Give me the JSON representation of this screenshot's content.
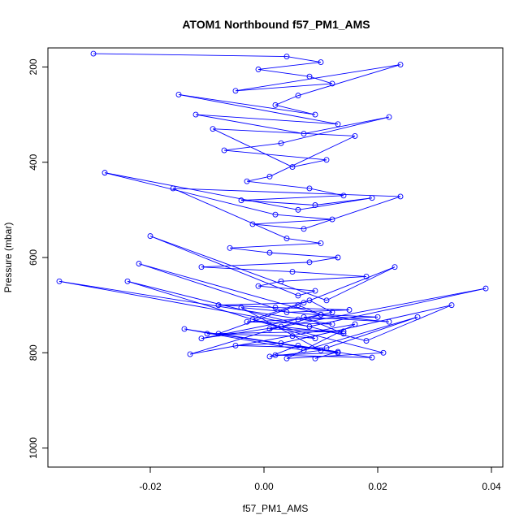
{
  "chart_data": {
    "type": "line",
    "title": "ATOM1 Northbound f57_PM1_AMS",
    "xlabel": "f57_PM1_AMS",
    "ylabel": "Pressure (mbar)",
    "xlim": [
      -0.038,
      0.042
    ],
    "ylim": [
      1040,
      160
    ],
    "y_reversed": true,
    "x_ticks": [
      -0.02,
      0.0,
      0.02,
      0.04
    ],
    "x_tick_labels": [
      "-0.02",
      "0.00",
      "0.02",
      "0.04"
    ],
    "y_ticks": [
      200,
      400,
      600,
      800,
      1000
    ],
    "y_tick_labels": [
      "200",
      "400",
      "600",
      "800",
      "1000"
    ],
    "grid": false,
    "series": [
      {
        "color": "#0000ff",
        "marker": "open-circle",
        "x": [
          -0.03,
          0.004,
          0.01,
          -0.001,
          0.008,
          0.012,
          -0.005,
          0.024,
          0.006,
          0.002,
          0.009,
          -0.015,
          0.013,
          -0.012,
          0.007,
          0.022,
          0.003,
          -0.007,
          0.011,
          0.005,
          -0.009,
          0.016,
          0.001,
          -0.003,
          0.008,
          0.014,
          -0.004,
          0.009,
          0.019,
          0.006,
          -0.028,
          0.002,
          0.012,
          -0.002,
          0.007,
          0.024,
          -0.016,
          0.004,
          0.01,
          -0.006,
          0.001,
          0.013,
          0.008,
          -0.011,
          0.005,
          0.018,
          0.003,
          -0.001,
          0.009,
          0.006,
          -0.02,
          0.011,
          0.023,
          0.007,
          -0.008,
          0.002,
          0.015,
          0.004,
          -0.022,
          0.01,
          0.02,
          0.006,
          -0.003,
          0.012,
          -0.036,
          0.008,
          0.039,
          0.001,
          0.014,
          -0.01,
          0.005,
          0.009,
          -0.024,
          0.018,
          0.033,
          0.003,
          -0.005,
          0.011,
          0.027,
          0.007,
          -0.014,
          0.013,
          0.002,
          0.019,
          -0.008,
          0.006,
          0.01,
          -0.013,
          0.016,
          0.004,
          0.021,
          -0.002,
          0.008,
          0.012,
          -0.011,
          0.003,
          0.014,
          0.007,
          0.022,
          -0.004,
          0.01,
          0.001,
          0.006,
          0.013,
          0.009
        ],
        "y": [
          172,
          178,
          190,
          205,
          220,
          235,
          250,
          195,
          260,
          280,
          300,
          258,
          320,
          300,
          340,
          305,
          360,
          375,
          395,
          410,
          330,
          345,
          430,
          440,
          455,
          470,
          480,
          490,
          475,
          500,
          422,
          510,
          520,
          530,
          540,
          472,
          455,
          560,
          570,
          580,
          590,
          600,
          610,
          620,
          630,
          640,
          650,
          660,
          670,
          680,
          555,
          690,
          620,
          695,
          700,
          705,
          710,
          715,
          613,
          720,
          725,
          730,
          735,
          740,
          650,
          745,
          665,
          750,
          755,
          760,
          765,
          770,
          650,
          775,
          700,
          780,
          785,
          790,
          725,
          795,
          750,
          800,
          805,
          810,
          760,
          700,
          720,
          803,
          740,
          812,
          800,
          730,
          690,
          715,
          770,
          745,
          760,
          725,
          735,
          705,
          795,
          808,
          785,
          798,
          812
        ]
      }
    ]
  }
}
